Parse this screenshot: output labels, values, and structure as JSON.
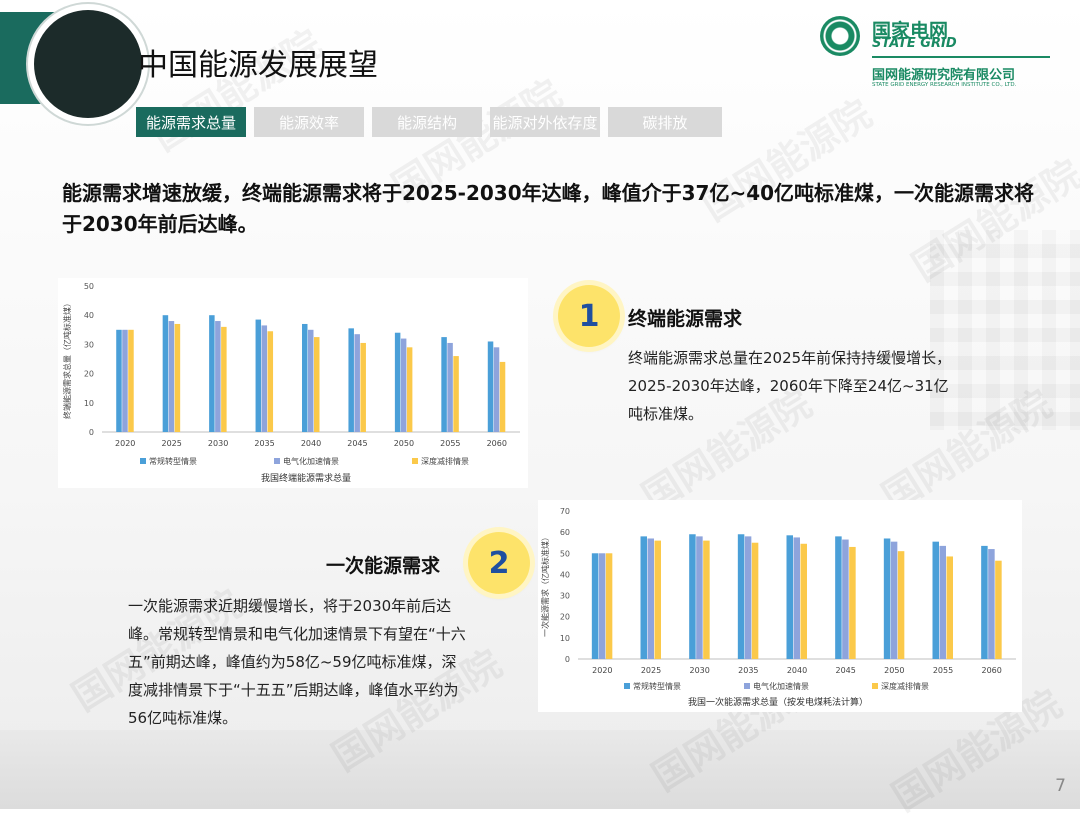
{
  "header": {
    "title": "中国能源发展展望",
    "logo": {
      "name_cn": "国家电网",
      "name_en": "STATE GRID",
      "institute_cn": "国网能源研究院有限公司",
      "institute_en": "STATE GRID ENERGY RESEARCH INSTITUTE CO., LTD."
    }
  },
  "tabs": [
    {
      "label": "能源需求总量",
      "active": true
    },
    {
      "label": "能源效率",
      "active": false
    },
    {
      "label": "能源结构",
      "active": false
    },
    {
      "label": "能源对外依存度",
      "active": false
    },
    {
      "label": "碳排放",
      "active": false
    }
  ],
  "headline": "能源需求增速放缓，终端能源需求将于2025-2030年达峰，峰值介于37亿~40亿吨标准煤，一次能源需求将于2030年前后达峰。",
  "section1": {
    "number": "1",
    "title": "终端能源需求",
    "text": "终端能源需求总量在2025年前保持持缓慢增长，2025-2030年达峰，2060年下降至24亿~31亿吨标准煤。"
  },
  "section2": {
    "number": "2",
    "title": "一次能源需求",
    "text": "一次能源需求近期缓慢增长，将于2030年前后达峰。常规转型情景和电气化加速情景下有望在“十六五”前期达峰，峰值约为58亿~59亿吨标准煤，深度减排情景下于“十五五”后期达峰，峰值水平约为56亿吨标准煤。"
  },
  "watermark": "国网能源院",
  "page_number": "7",
  "colors": {
    "series1": "#4a9fd8",
    "series2": "#8ea4dc",
    "series3": "#fbc94a",
    "accent": "#1a6b5e"
  },
  "chart_data": [
    {
      "type": "bar",
      "title": "我国终端能源需求总量",
      "ylabel": "终端能源需求总量（亿吨标准煤）",
      "ylim": [
        0,
        50
      ],
      "yticks": [
        0,
        10,
        20,
        30,
        40,
        50
      ],
      "categories": [
        "2020",
        "2025",
        "2030",
        "2035",
        "2040",
        "2045",
        "2050",
        "2055",
        "2060"
      ],
      "series": [
        {
          "name": "常规转型情景",
          "values": [
            35,
            40,
            40,
            38.5,
            37,
            35.5,
            34,
            32.5,
            31
          ]
        },
        {
          "name": "电气化加速情景",
          "values": [
            35,
            38,
            38,
            36.5,
            35,
            33.5,
            32,
            30.5,
            29
          ]
        },
        {
          "name": "深度减排情景",
          "values": [
            35,
            37,
            36,
            34.5,
            32.5,
            30.5,
            29,
            26,
            24
          ]
        }
      ],
      "legend": "bottom",
      "grid": false
    },
    {
      "type": "bar",
      "title": "我国一次能源需求总量（按发电煤耗法计算）",
      "ylabel": "一次能源需求（亿吨标准煤）",
      "ylim": [
        0,
        70
      ],
      "yticks": [
        0,
        10,
        20,
        30,
        40,
        50,
        60,
        70
      ],
      "categories": [
        "2020",
        "2025",
        "2030",
        "2035",
        "2040",
        "2045",
        "2050",
        "2055",
        "2060"
      ],
      "series": [
        {
          "name": "常规转型情景",
          "values": [
            50,
            58,
            59,
            59,
            58.5,
            58,
            57,
            55.5,
            53.5
          ]
        },
        {
          "name": "电气化加速情景",
          "values": [
            50,
            57,
            58,
            58,
            57.5,
            56.5,
            55.5,
            53.5,
            52
          ]
        },
        {
          "name": "深度减排情景",
          "values": [
            50,
            56,
            56,
            55,
            54.5,
            53,
            51,
            48.5,
            46.5
          ]
        }
      ],
      "legend": "bottom",
      "grid": false
    }
  ]
}
